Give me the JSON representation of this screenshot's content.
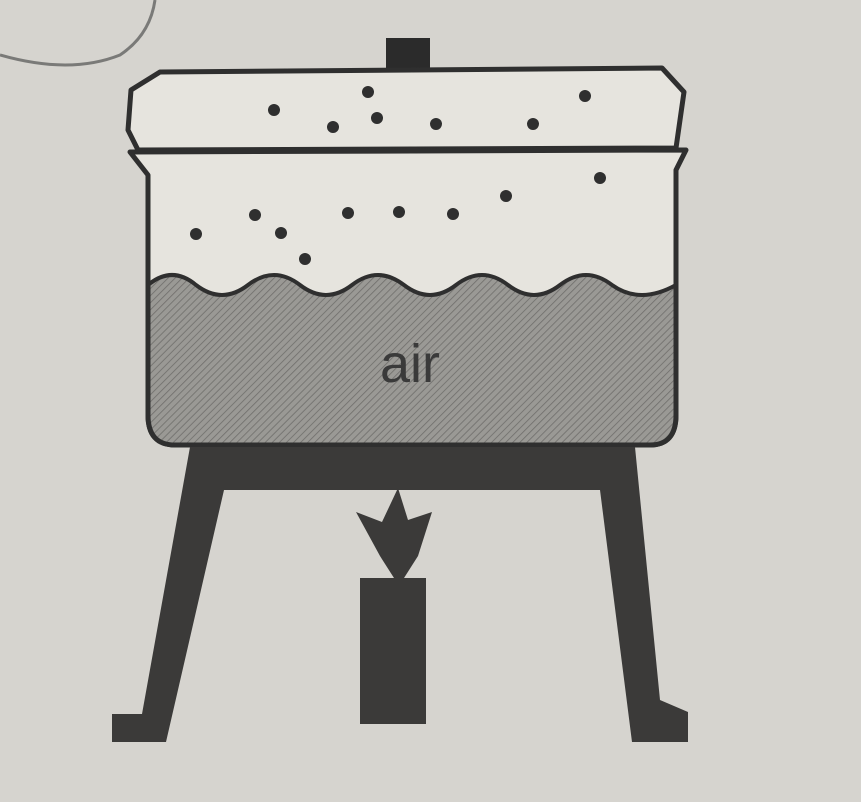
{
  "diagram": {
    "liquid_label": "air"
  },
  "colors": {
    "paper": "#d6d4cf",
    "ink": "#2f2f2f",
    "liquid_fill": "#8f8e8a",
    "stand": "#3b3a39"
  }
}
